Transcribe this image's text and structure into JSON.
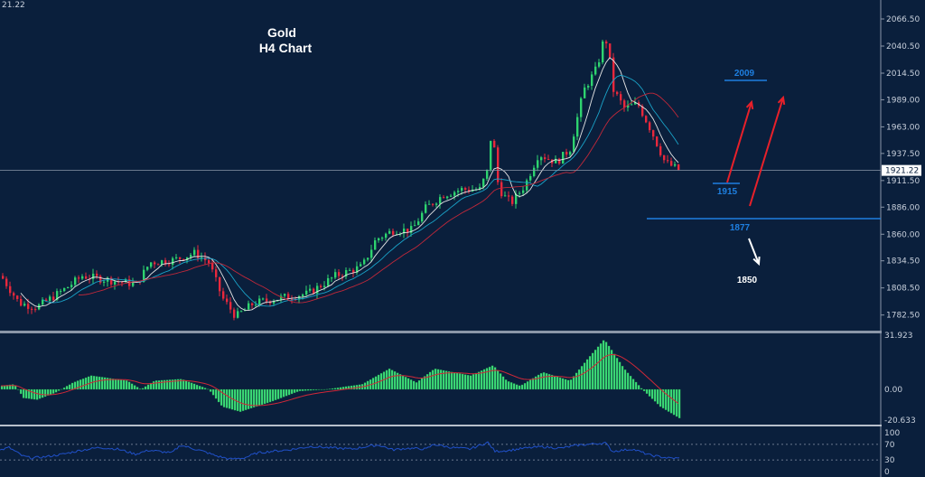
{
  "chart_data": {
    "type": "candlestick",
    "title": "Gold",
    "subtitle": "H4 Chart",
    "corner_label": "21.22",
    "colors": {
      "background": "#0a1f3c",
      "bull": "#2ed36f",
      "bear": "#e8283c",
      "ma_fast": "#e6e6e6",
      "ma_mid": "#1aa3c8",
      "ma_slow": "#c0283a",
      "level": "#1e7fe0",
      "arrow_up": "#e8202a",
      "arrow_down": "#ffffff",
      "macd_hist": "#3ddc78",
      "macd_signal": "#d02838",
      "rsi": "#2050c8"
    },
    "price_axis": {
      "ticks": [
        "2066.50",
        "2040.50",
        "2014.50",
        "1989.00",
        "1963.00",
        "1937.50",
        "1911.50",
        "1886.00",
        "1860.00",
        "1834.50",
        "1808.50",
        "1782.50"
      ],
      "ylim": [
        1769,
        2090
      ]
    },
    "current_price": {
      "value": 1921.22,
      "label": "1921.22"
    },
    "close_path": [
      [
        0,
        1820
      ],
      [
        20,
        1794
      ],
      [
        40,
        1790
      ],
      [
        70,
        1807
      ],
      [
        90,
        1820
      ],
      [
        120,
        1816
      ],
      [
        150,
        1812
      ],
      [
        165,
        1833
      ],
      [
        190,
        1835
      ],
      [
        215,
        1842
      ],
      [
        230,
        1833
      ],
      [
        245,
        1799
      ],
      [
        260,
        1781
      ],
      [
        280,
        1794
      ],
      [
        310,
        1799
      ],
      [
        340,
        1803
      ],
      [
        370,
        1820
      ],
      [
        400,
        1829
      ],
      [
        415,
        1855
      ],
      [
        435,
        1864
      ],
      [
        455,
        1864
      ],
      [
        470,
        1885
      ],
      [
        490,
        1898
      ],
      [
        510,
        1903
      ],
      [
        530,
        1903
      ],
      [
        540,
        1924
      ],
      [
        543,
        1965
      ],
      [
        550,
        1910
      ],
      [
        555,
        1898
      ],
      [
        565,
        1890
      ],
      [
        580,
        1907
      ],
      [
        595,
        1937
      ],
      [
        615,
        1929
      ],
      [
        630,
        1942
      ],
      [
        645,
        1998
      ],
      [
        660,
        2020
      ],
      [
        668,
        2050
      ],
      [
        672,
        2040
      ],
      [
        678,
        1998
      ],
      [
        690,
        1981
      ],
      [
        705,
        1985
      ],
      [
        720,
        1959
      ],
      [
        735,
        1929
      ],
      [
        752,
        1921
      ]
    ],
    "annotations": [
      {
        "label": "2009",
        "price": 2009,
        "kind": "target-line"
      },
      {
        "label": "1915",
        "price": 1915,
        "kind": "support-line"
      },
      {
        "label": "1877",
        "price": 1877,
        "kind": "support-line"
      },
      {
        "label": "1850",
        "price": 1850,
        "kind": "target-text"
      }
    ],
    "macd": {
      "axis_ticks": [
        "31.923",
        "0.00",
        "-20.633"
      ],
      "ylim": [
        -20.633,
        31.923
      ],
      "hist_path": [
        [
          0,
          2
        ],
        [
          15,
          3
        ],
        [
          25,
          -5
        ],
        [
          40,
          -6
        ],
        [
          60,
          -2
        ],
        [
          80,
          4
        ],
        [
          100,
          8
        ],
        [
          140,
          5
        ],
        [
          155,
          0
        ],
        [
          170,
          5
        ],
        [
          200,
          6
        ],
        [
          230,
          0
        ],
        [
          245,
          -10
        ],
        [
          265,
          -13
        ],
        [
          300,
          -7
        ],
        [
          330,
          -1
        ],
        [
          360,
          0
        ],
        [
          400,
          3
        ],
        [
          430,
          12
        ],
        [
          460,
          4
        ],
        [
          480,
          12
        ],
        [
          520,
          8
        ],
        [
          545,
          14
        ],
        [
          560,
          5
        ],
        [
          575,
          2
        ],
        [
          600,
          10
        ],
        [
          630,
          5
        ],
        [
          650,
          18
        ],
        [
          668,
          29
        ],
        [
          690,
          12
        ],
        [
          710,
          0
        ],
        [
          730,
          -10
        ],
        [
          752,
          -17
        ]
      ]
    },
    "rsi": {
      "axis_ticks": [
        "100",
        "70",
        "30",
        "0"
      ],
      "levels": [
        70,
        30
      ],
      "ylim": [
        0,
        100
      ],
      "path": [
        [
          0,
          55
        ],
        [
          10,
          62
        ],
        [
          25,
          40
        ],
        [
          35,
          35
        ],
        [
          50,
          38
        ],
        [
          70,
          45
        ],
        [
          90,
          55
        ],
        [
          110,
          62
        ],
        [
          130,
          58
        ],
        [
          150,
          45
        ],
        [
          165,
          55
        ],
        [
          190,
          48
        ],
        [
          200,
          68
        ],
        [
          225,
          52
        ],
        [
          240,
          40
        ],
        [
          255,
          32
        ],
        [
          270,
          35
        ],
        [
          285,
          48
        ],
        [
          300,
          52
        ],
        [
          320,
          56
        ],
        [
          345,
          65
        ],
        [
          360,
          62
        ],
        [
          390,
          58
        ],
        [
          410,
          66
        ],
        [
          420,
          68
        ],
        [
          435,
          56
        ],
        [
          450,
          60
        ],
        [
          472,
          58
        ],
        [
          480,
          70
        ],
        [
          500,
          62
        ],
        [
          520,
          58
        ],
        [
          540,
          75
        ],
        [
          548,
          52
        ],
        [
          565,
          55
        ],
        [
          580,
          60
        ],
        [
          600,
          64
        ],
        [
          620,
          60
        ],
        [
          640,
          68
        ],
        [
          660,
          72
        ],
        [
          670,
          74
        ],
        [
          678,
          52
        ],
        [
          700,
          58
        ],
        [
          720,
          42
        ],
        [
          740,
          35
        ],
        [
          752,
          34
        ]
      ]
    }
  }
}
